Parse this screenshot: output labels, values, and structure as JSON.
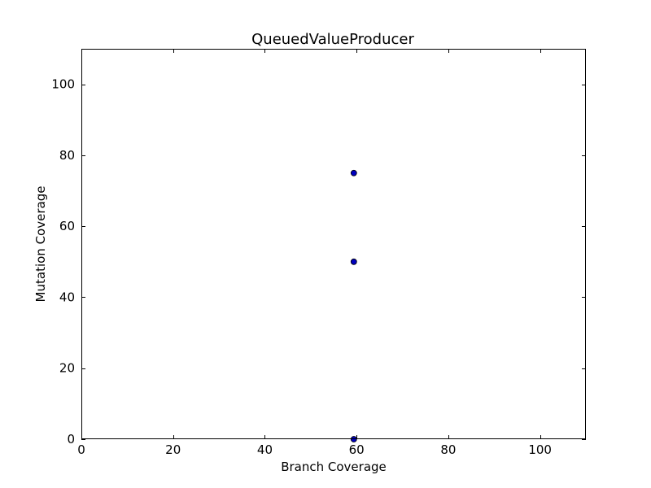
{
  "chart_data": {
    "type": "scatter",
    "title": "QueuedValueProducer",
    "xlabel": "Branch Coverage",
    "ylabel": "Mutation Coverage",
    "xlim": [
      0,
      110
    ],
    "ylim": [
      0,
      110
    ],
    "xticks": [
      0,
      20,
      40,
      60,
      80,
      100
    ],
    "yticks": [
      0,
      20,
      40,
      60,
      80,
      100
    ],
    "grid": false,
    "marker_color": "#0000bf",
    "points": [
      {
        "x": 59.4,
        "y": 75
      },
      {
        "x": 59.4,
        "y": 50
      },
      {
        "x": 59.4,
        "y": 0
      }
    ]
  }
}
